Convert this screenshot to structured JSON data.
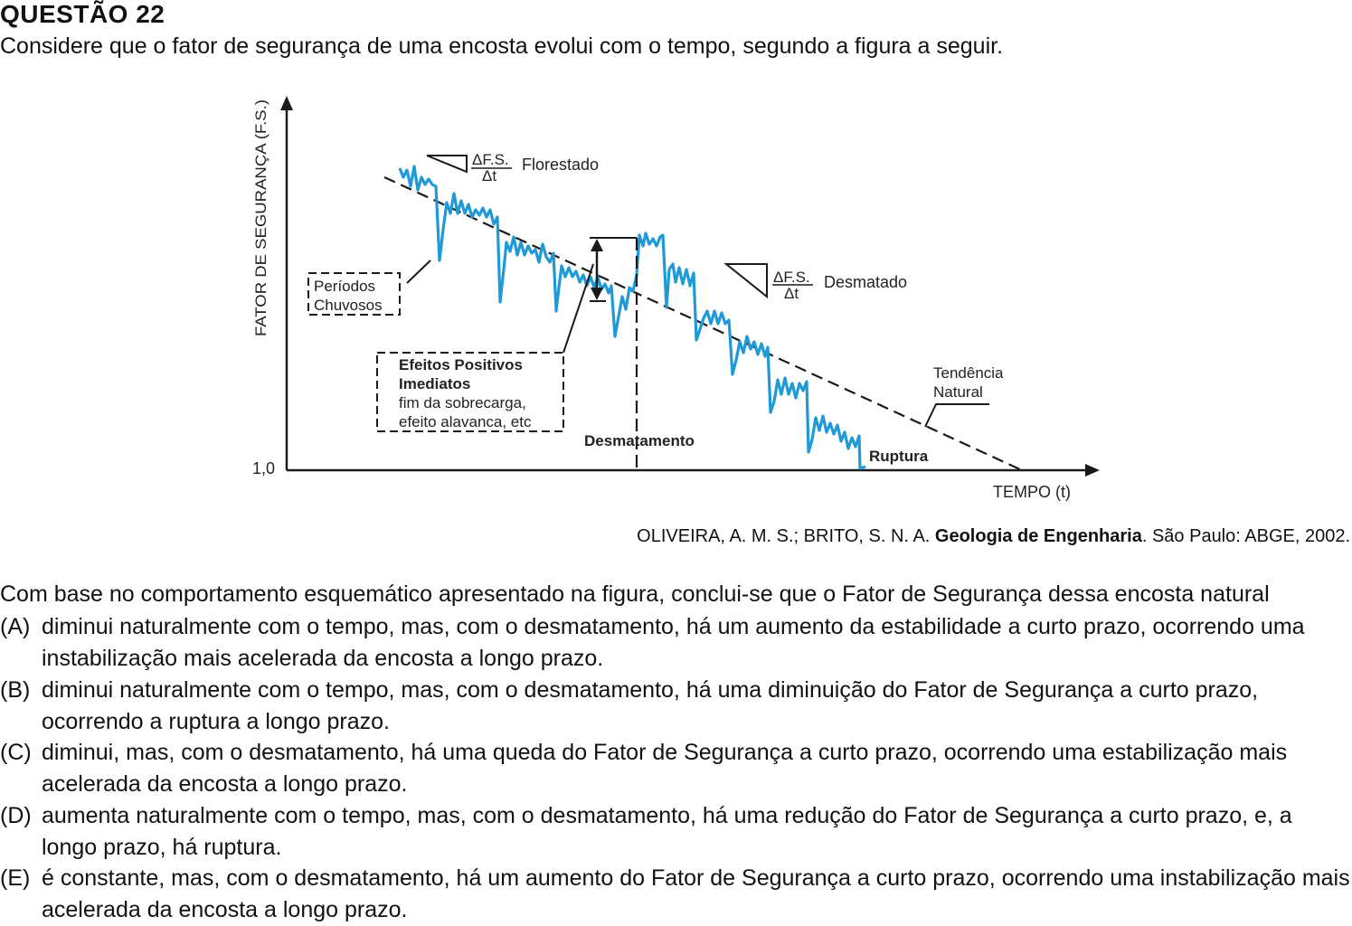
{
  "question": {
    "title": "QUESTÃO 22",
    "intro": "Considere que o fator de segurança de uma encosta evolui com o tempo, segundo a figura a seguir.",
    "stem": "Com base no comportamento esquemático apresentado na figura, conclui-se que o Fator de Segurança dessa encosta natural",
    "options": [
      {
        "letter": "(A)",
        "text": "diminui naturalmente com o tempo, mas, com o desmatamento, há um aumento da estabilidade a curto prazo, ocorrendo uma instabilização mais acelerada da encosta a longo prazo."
      },
      {
        "letter": "(B)",
        "text": "diminui naturalmente com o tempo, mas, com o desmatamento, há uma diminuição do Fator de Segurança a curto prazo, ocorrendo a ruptura a longo prazo."
      },
      {
        "letter": "(C)",
        "text": "diminui, mas, com o desmatamento, há uma queda do Fator de Segurança a curto prazo, ocorrendo uma estabilização mais acelerada da encosta a longo prazo."
      },
      {
        "letter": "(D)",
        "text": "aumenta naturalmente com o tempo, mas, com o desmatamento, há uma redução do Fator de Segurança a curto prazo, e, a longo prazo, há ruptura."
      },
      {
        "letter": "(E)",
        "text": "é constante, mas, com o desmatamento, há um aumento do Fator de Segurança a curto prazo, ocorrendo uma instabilização mais acelerada da encosta a longo prazo."
      }
    ]
  },
  "citation": {
    "authors": "OLIVEIRA, A. M. S.; BRITO, S. N. A. ",
    "work": "Geologia de Engenharia",
    "rest": ". São Paulo: ABGE, 2002."
  },
  "figure": {
    "y_axis_label": "FATOR DE SEGURANÇA (F.S.)",
    "x_axis_label": "TEMPO (t)",
    "y_tick": "1,0",
    "slope_numerator": "ΔF.S.",
    "slope_denominator": "Δt",
    "label_forested": "Florestado",
    "label_deforested": "Desmatado",
    "label_rainy_1": "Períodos",
    "label_rainy_2": "Chuvosos",
    "label_effects_1": "Efeitos Positivos",
    "label_effects_2": "Imediatos",
    "label_effects_3": "fim da sobrecarga,",
    "label_effects_4": "efeito alavanca, etc",
    "label_deforestation": "Desmatamento",
    "label_trend_1": "Tendência",
    "label_trend_2": "Natural",
    "label_rupture": "Ruptura",
    "series_color": "#1f9ad6",
    "line_color": "#1a1a1a"
  }
}
